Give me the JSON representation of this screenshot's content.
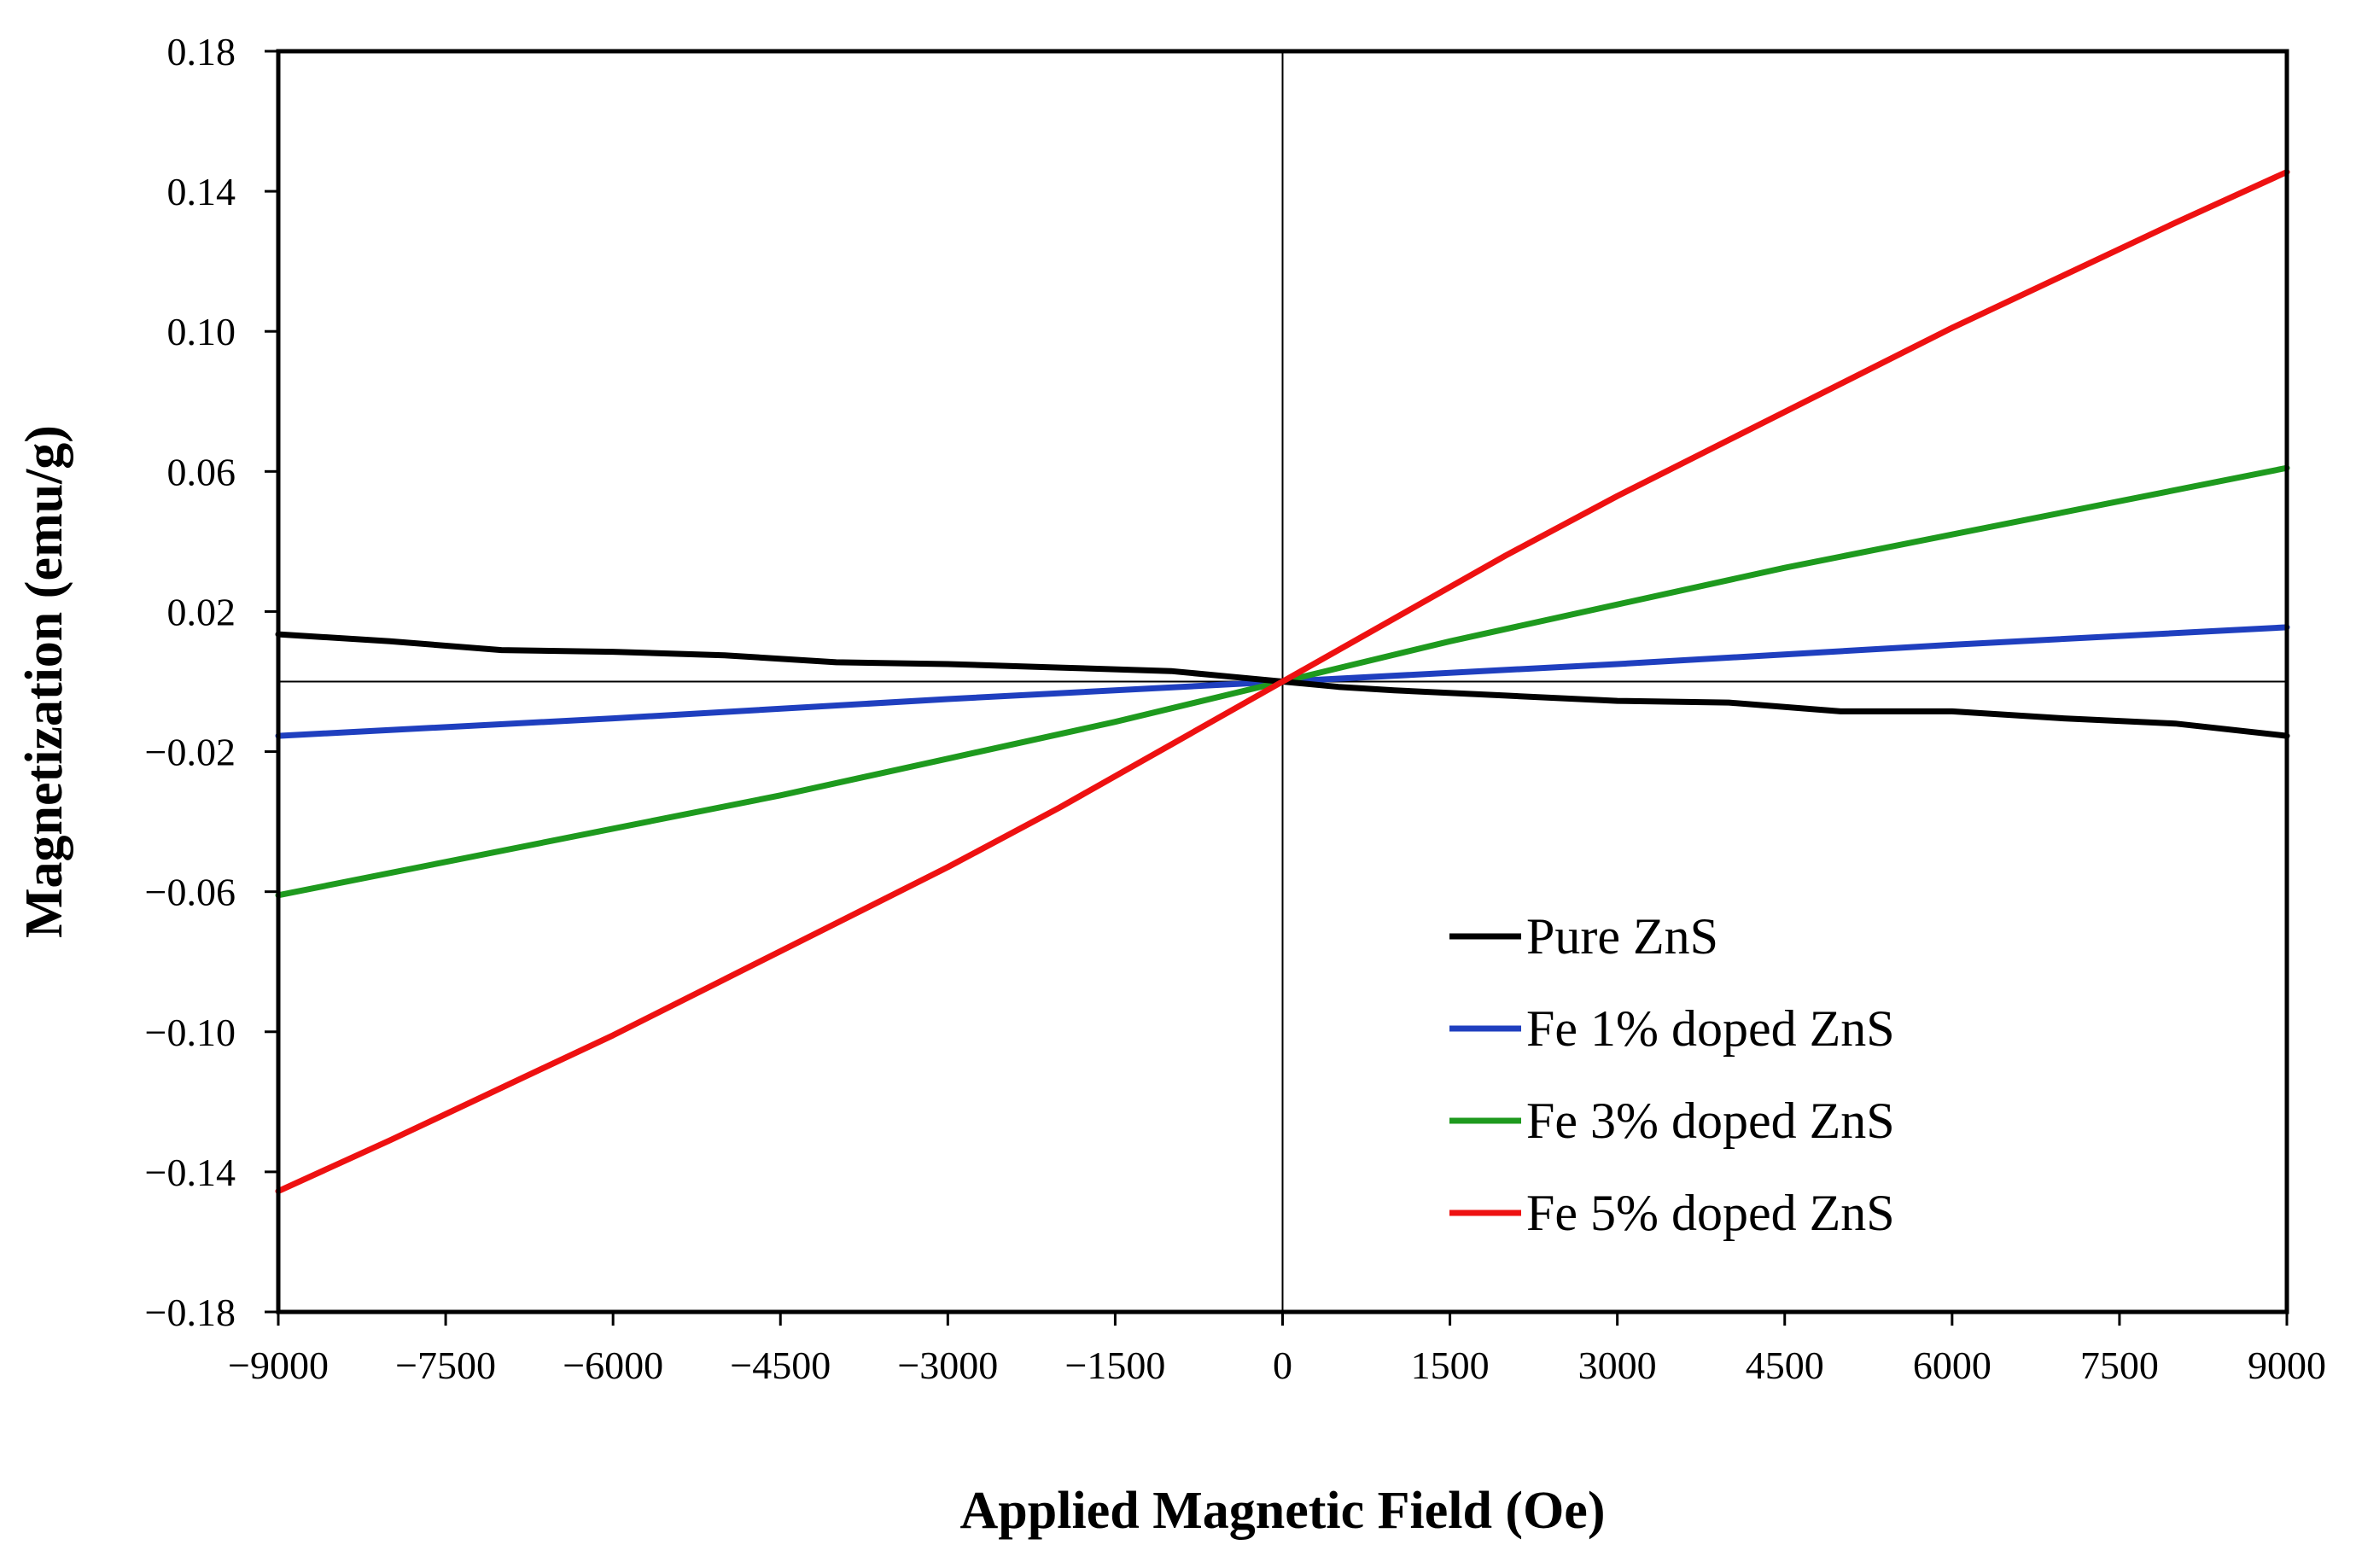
{
  "chart_data": {
    "type": "line",
    "title": "",
    "xlabel": "Applied Magnetic Field (Oe)",
    "ylabel": "Magnetization (emu/g)",
    "xlim": [
      -9000,
      9000
    ],
    "ylim": [
      -0.18,
      0.18
    ],
    "x_ticks": [
      -9000,
      -7500,
      -6000,
      -4500,
      -3000,
      -1500,
      0,
      1500,
      3000,
      4500,
      6000,
      7500,
      9000
    ],
    "x_tick_labels": [
      "−9000",
      "−7500",
      "−6000",
      "−4500",
      "−3000",
      "−1500",
      "0",
      "1500",
      "3000",
      "4500",
      "6000",
      "7500",
      "9000"
    ],
    "y_ticks": [
      -0.18,
      -0.14,
      -0.1,
      -0.06,
      -0.02,
      0.02,
      0.06,
      0.1,
      0.14,
      0.18
    ],
    "y_tick_labels": [
      "−0.18",
      "−0.14",
      "−0.10",
      "−0.06",
      "−0.02",
      "0.02",
      "0.06",
      "0.10",
      "0.14",
      "0.18"
    ],
    "grid": false,
    "legend_position": "bottom-right",
    "series": [
      {
        "name": "Pure ZnS",
        "color": "#000000",
        "x": [
          -9000,
          -8000,
          -7000,
          -6000,
          -5000,
          -4000,
          -3000,
          -2000,
          -1000,
          -500,
          0,
          500,
          1000,
          2000,
          3000,
          4000,
          5000,
          6000,
          7000,
          8000,
          9000
        ],
        "y": [
          0.0135,
          0.0115,
          0.009,
          0.0085,
          0.0075,
          0.0055,
          0.005,
          0.004,
          0.003,
          0.0015,
          0.0,
          -0.0015,
          -0.0025,
          -0.004,
          -0.0055,
          -0.006,
          -0.0085,
          -0.0085,
          -0.0105,
          -0.012,
          -0.0155
        ]
      },
      {
        "name": "Fe 1% doped ZnS",
        "color": "#1f3fbf",
        "x": [
          -9000,
          -6000,
          -3000,
          0,
          3000,
          6000,
          9000
        ],
        "y": [
          -0.0155,
          -0.0105,
          -0.005,
          0.0,
          0.005,
          0.0105,
          0.0155
        ]
      },
      {
        "name": "Fe 3% doped ZnS",
        "color": "#1e9a1e",
        "x": [
          -9000,
          -7500,
          -6000,
          -4500,
          -3000,
          -1500,
          0,
          1500,
          3000,
          4500,
          6000,
          7500,
          9000
        ],
        "y": [
          -0.061,
          -0.0515,
          -0.042,
          -0.0325,
          -0.022,
          -0.0115,
          0.0,
          0.0115,
          0.022,
          0.0325,
          0.042,
          0.0515,
          0.061
        ]
      },
      {
        "name": "Fe 5% doped ZnS",
        "color": "#ee1111",
        "x": [
          -9000,
          -8000,
          -7000,
          -6000,
          -5000,
          -4000,
          -3000,
          -2000,
          -1000,
          0,
          1000,
          2000,
          3000,
          4000,
          5000,
          6000,
          7000,
          8000,
          9000
        ],
        "y": [
          -0.1455,
          -0.131,
          -0.116,
          -0.101,
          -0.085,
          -0.069,
          -0.053,
          -0.036,
          -0.018,
          0.0,
          0.018,
          0.036,
          0.053,
          0.069,
          0.085,
          0.101,
          0.116,
          0.131,
          0.1455
        ]
      }
    ]
  }
}
